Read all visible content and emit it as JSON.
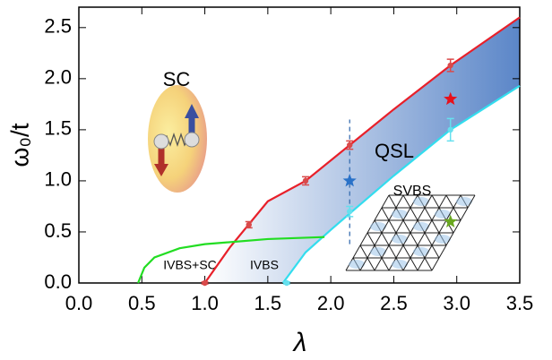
{
  "chart_data": {
    "type": "line",
    "x_label": "λ",
    "y_label": "ω₀/t",
    "xlim": [
      0,
      3.5
    ],
    "ylim": [
      0,
      2.7
    ],
    "xticks": [
      {
        "value": 0,
        "label": "0.0"
      },
      {
        "value": 0.5,
        "label": "0.5"
      },
      {
        "value": 1,
        "label": "1.0"
      },
      {
        "value": 1.5,
        "label": "1.5"
      },
      {
        "value": 2,
        "label": "2.0"
      },
      {
        "value": 2.5,
        "label": "2.5"
      },
      {
        "value": 3,
        "label": "3.0"
      },
      {
        "value": 3.5,
        "label": "3.5"
      }
    ],
    "yticks": [
      {
        "value": 0,
        "label": "0.0"
      },
      {
        "value": 0.5,
        "label": "0.5"
      },
      {
        "value": 1,
        "label": "1.0"
      },
      {
        "value": 1.5,
        "label": "1.5"
      },
      {
        "value": 2,
        "label": "2.0"
      },
      {
        "value": 2.5,
        "label": "2.5"
      }
    ],
    "grid": false,
    "annotations": [
      "SC",
      "QSL",
      "SVBS",
      "IVBS+SC",
      "IVBS"
    ],
    "shade_color": "#5b86c8",
    "series": [
      {
        "kind": "line",
        "color": "#e8202a",
        "x": [
          1.0,
          1.2,
          1.5,
          1.8,
          2.15,
          2.5,
          2.95,
          3.5
        ],
        "values": [
          0,
          0.35,
          0.8,
          1.0,
          1.35,
          1.7,
          2.13,
          2.6
        ]
      },
      {
        "kind": "line",
        "color": "#33ddee",
        "x": [
          1.62,
          1.8,
          2.0,
          2.15,
          2.5,
          2.95,
          3.5
        ],
        "values": [
          0,
          0.3,
          0.52,
          0.68,
          1.05,
          1.5,
          1.93
        ]
      },
      {
        "kind": "line",
        "color": "#22dd22",
        "x": [
          0.47,
          0.52,
          0.6,
          0.8,
          1.0,
          1.5,
          1.95
        ],
        "values": [
          0,
          0.15,
          0.25,
          0.34,
          0.38,
          0.43,
          0.45
        ]
      },
      {
        "kind": "line",
        "dash": true,
        "color": "#3a6fb0",
        "x": [
          2.15,
          2.15
        ],
        "values": [
          0.38,
          1.6
        ]
      },
      {
        "kind": "errorbar",
        "color": "#d94a4a",
        "x": [
          1.0,
          1.35,
          1.8,
          2.15,
          2.95
        ],
        "values": [
          0,
          0.57,
          1.0,
          1.35,
          2.13
        ],
        "errors": [
          0.01,
          0.03,
          0.04,
          0.04,
          0.06
        ]
      },
      {
        "kind": "errorbar",
        "color": "#66e0ee",
        "x": [
          1.65,
          2.15,
          2.95
        ],
        "values": [
          0,
          0.7,
          1.5
        ],
        "errors": [
          0.01,
          0.05,
          0.11
        ]
      },
      {
        "kind": "star",
        "colors": [
          "#2a72c8",
          "#e8101a",
          "#6aa820"
        ],
        "x": [
          2.15,
          2.95,
          2.95
        ],
        "values": [
          1.0,
          1.8,
          0.6
        ]
      }
    ]
  }
}
